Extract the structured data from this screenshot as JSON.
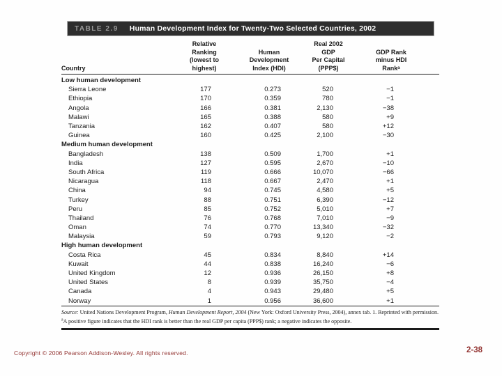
{
  "table": {
    "label": "TABLE 2.9",
    "title": "Human Development Index for Twenty-Two Selected Countries, 2002",
    "columns": [
      "Country",
      "Relative\nRanking\n(lowest to\nhighest)",
      "Human\nDevelopment\nIndex (HDI)",
      "Real 2002\nGDP\nPer Capital\n(PPP$)",
      "GDP Rank\nminus HDI\nRankᵃ"
    ],
    "sections": [
      {
        "header": "Low human development",
        "rows": [
          {
            "country": "Sierra Leone",
            "rank": "177",
            "hdi": "0.273",
            "gdp": "520",
            "diff": "−1"
          },
          {
            "country": "Ethiopia",
            "rank": "170",
            "hdi": "0.359",
            "gdp": "780",
            "diff": "−1"
          },
          {
            "country": "Angola",
            "rank": "166",
            "hdi": "0.381",
            "gdp": "2,130",
            "diff": "−38"
          },
          {
            "country": "Malawi",
            "rank": "165",
            "hdi": "0.388",
            "gdp": "580",
            "diff": "+9"
          },
          {
            "country": "Tanzania",
            "rank": "162",
            "hdi": "0.407",
            "gdp": "580",
            "diff": "+12"
          },
          {
            "country": "Guinea",
            "rank": "160",
            "hdi": "0.425",
            "gdp": "2,100",
            "diff": "−30"
          }
        ]
      },
      {
        "header": "Medium human development",
        "rows": [
          {
            "country": "Bangladesh",
            "rank": "138",
            "hdi": "0.509",
            "gdp": "1,700",
            "diff": "+1"
          },
          {
            "country": "India",
            "rank": "127",
            "hdi": "0.595",
            "gdp": "2,670",
            "diff": "−10"
          },
          {
            "country": "South Africa",
            "rank": "119",
            "hdi": "0.666",
            "gdp": "10,070",
            "diff": "−66"
          },
          {
            "country": "Nicaragua",
            "rank": "118",
            "hdi": "0.667",
            "gdp": "2,470",
            "diff": "+1"
          },
          {
            "country": "China",
            "rank": "94",
            "hdi": "0.745",
            "gdp": "4,580",
            "diff": "+5"
          },
          {
            "country": "Turkey",
            "rank": "88",
            "hdi": "0.751",
            "gdp": "6,390",
            "diff": "−12"
          },
          {
            "country": "Peru",
            "rank": "85",
            "hdi": "0.752",
            "gdp": "5,010",
            "diff": "+7"
          },
          {
            "country": "Thailand",
            "rank": "76",
            "hdi": "0.768",
            "gdp": "7,010",
            "diff": "−9"
          },
          {
            "country": "Oman",
            "rank": "74",
            "hdi": "0.770",
            "gdp": "13,340",
            "diff": "−32"
          },
          {
            "country": "Malaysia",
            "rank": "59",
            "hdi": "0.793",
            "gdp": "9,120",
            "diff": "−2"
          }
        ]
      },
      {
        "header": "High human development",
        "rows": [
          {
            "country": "Costa Rica",
            "rank": "45",
            "hdi": "0.834",
            "gdp": "8,840",
            "diff": "+14"
          },
          {
            "country": "Kuwait",
            "rank": "44",
            "hdi": "0.838",
            "gdp": "16,240",
            "diff": "−6"
          },
          {
            "country": "United Kingdom",
            "rank": "12",
            "hdi": "0.936",
            "gdp": "26,150",
            "diff": "+8"
          },
          {
            "country": "United States",
            "rank": "8",
            "hdi": "0.939",
            "gdp": "35,750",
            "diff": "−4"
          },
          {
            "country": "Canada",
            "rank": "4",
            "hdi": "0.943",
            "gdp": "29,480",
            "diff": "+5"
          },
          {
            "country": "Norway",
            "rank": "1",
            "hdi": "0.956",
            "gdp": "36,600",
            "diff": "+1"
          }
        ]
      }
    ],
    "source": {
      "label": "Source:",
      "text_1": " United Nations Development Program, ",
      "italic_title": "Human Development Report, 2004",
      "text_2": " (New York: Oxford University Press, 2004), annex tab. 1. Reprinted with permission."
    },
    "footnote": {
      "sup": "a",
      "text": "A positive figure indicates that the HDI rank is better than the real GDP per capita (PPP$) rank; a negative indicates the opposite."
    }
  },
  "footer": {
    "copyright": "Copyright © 2006 Pearson Addison-Wesley. All rights reserved.",
    "page_number": "2-38"
  },
  "colors": {
    "maroon": "#943634",
    "header_bar": "#2e2e2e",
    "table_label_gray": "#9b9b9b"
  }
}
